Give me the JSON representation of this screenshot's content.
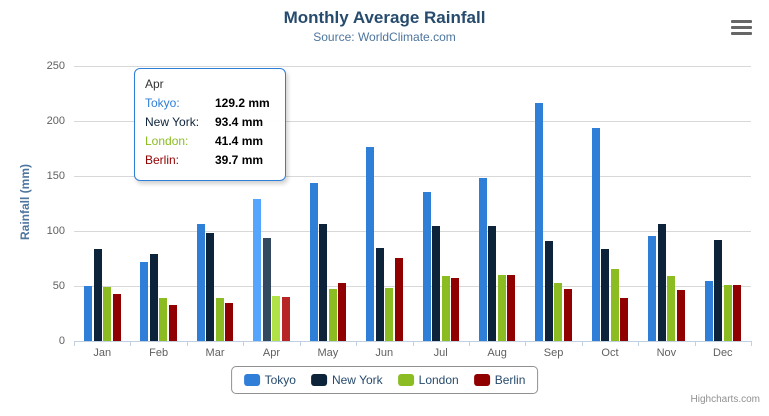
{
  "chart_data": {
    "type": "bar",
    "title": "Monthly Average Rainfall",
    "subtitle": "Source: WorldClimate.com",
    "ylabel": "Rainfall (mm)",
    "ylim": [
      0,
      250
    ],
    "yticks": [
      0,
      50,
      100,
      150,
      200,
      250
    ],
    "grid": true,
    "legend_position": "bottom",
    "categories": [
      "Jan",
      "Feb",
      "Mar",
      "Apr",
      "May",
      "Jun",
      "Jul",
      "Aug",
      "Sep",
      "Oct",
      "Nov",
      "Dec"
    ],
    "series": [
      {
        "name": "Tokyo",
        "color": "#2f7ed8",
        "values": [
          49.9,
          71.5,
          106.4,
          129.2,
          144.0,
          176.0,
          135.6,
          148.5,
          216.4,
          194.1,
          95.6,
          54.4
        ]
      },
      {
        "name": "New York",
        "color": "#0d233a",
        "values": [
          83.6,
          78.8,
          98.5,
          93.4,
          106.0,
          84.5,
          105.0,
          104.3,
          91.2,
          83.5,
          106.6,
          92.3
        ]
      },
      {
        "name": "London",
        "color": "#8bbc21",
        "values": [
          48.9,
          38.8,
          39.3,
          41.4,
          47.0,
          48.3,
          59.0,
          59.6,
          52.4,
          65.2,
          59.3,
          51.2
        ]
      },
      {
        "name": "Berlin",
        "color": "#910000",
        "values": [
          42.4,
          33.2,
          34.5,
          39.7,
          52.6,
          75.5,
          57.4,
          60.4,
          47.6,
          39.1,
          46.8,
          51.1
        ]
      }
    ]
  },
  "tooltip": {
    "hovered_category": "Apr",
    "header": "Apr",
    "rows": [
      {
        "name": "Tokyo:",
        "value": "129.2 mm",
        "color": "#2f7ed8"
      },
      {
        "name": "New York:",
        "value": "93.4 mm",
        "color": "#0d233a"
      },
      {
        "name": "London:",
        "value": "41.4 mm",
        "color": "#8bbc21"
      },
      {
        "name": "Berlin:",
        "value": "39.7 mm",
        "color": "#910000"
      }
    ]
  },
  "credit": "Highcharts.com",
  "colors": {
    "title": "#274b6d",
    "subtitle": "#4d759e",
    "axis_label": "#606060",
    "gridline": "#d8d8d8",
    "axis_line": "#c0d0e0",
    "legend_border": "#909090",
    "tooltip_border": "#2f7ed8"
  }
}
